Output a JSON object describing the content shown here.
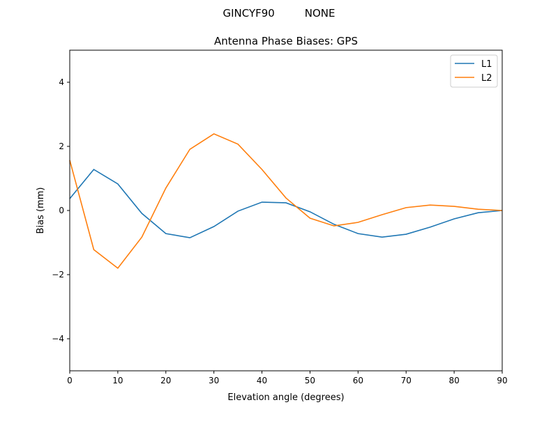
{
  "chart_data": {
    "type": "line",
    "suptitle": "GINCYF90         NONE",
    "title": "Antenna Phase Biases: GPS",
    "xlabel": "Elevation angle (degrees)",
    "ylabel": "Bias (mm)",
    "xlim": [
      0,
      90
    ],
    "ylim": [
      -5,
      5
    ],
    "xticks": [
      0,
      10,
      20,
      30,
      40,
      50,
      60,
      70,
      80,
      90
    ],
    "yticks": [
      -4,
      -2,
      0,
      2,
      4
    ],
    "ytick_labels": [
      "−4",
      "−2",
      "0",
      "2",
      "4"
    ],
    "grid": false,
    "legend_position": "top-right",
    "x": [
      0,
      5,
      10,
      15,
      20,
      25,
      30,
      35,
      40,
      45,
      50,
      55,
      60,
      65,
      70,
      75,
      80,
      85,
      90
    ],
    "series": [
      {
        "name": "L1",
        "color": "#1f77b4",
        "values": [
          0.37,
          1.28,
          0.83,
          -0.09,
          -0.72,
          -0.85,
          -0.5,
          -0.02,
          0.26,
          0.24,
          -0.04,
          -0.43,
          -0.72,
          -0.83,
          -0.74,
          -0.52,
          -0.26,
          -0.07,
          0
        ]
      },
      {
        "name": "L2",
        "color": "#ff7f0e",
        "values": [
          1.57,
          -1.22,
          -1.8,
          -0.83,
          0.7,
          1.91,
          2.39,
          2.07,
          1.28,
          0.39,
          -0.24,
          -0.48,
          -0.37,
          -0.13,
          0.09,
          0.17,
          0.13,
          0.04,
          0
        ]
      }
    ]
  }
}
